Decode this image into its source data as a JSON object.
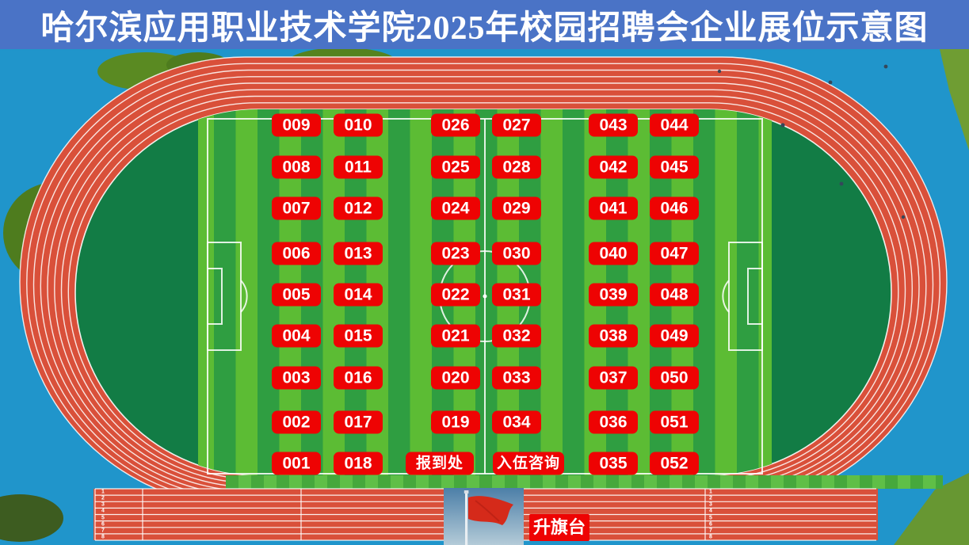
{
  "title": "哈尔滨应用职业技术学院2025年校园招聘会企业展位示意图",
  "booth_columns": [
    [
      "009",
      "008",
      "007",
      "006",
      "005",
      "004",
      "003",
      "002",
      "001"
    ],
    [
      "010",
      "011",
      "012",
      "013",
      "014",
      "015",
      "016",
      "017",
      "018"
    ],
    [
      "026",
      "025",
      "024",
      "023",
      "022",
      "021",
      "020",
      "019",
      "报到处"
    ],
    [
      "027",
      "028",
      "029",
      "030",
      "031",
      "032",
      "033",
      "034",
      "入伍咨询"
    ],
    [
      "043",
      "042",
      "041",
      "040",
      "039",
      "038",
      "037",
      "036",
      "035"
    ],
    [
      "044",
      "045",
      "046",
      "047",
      "048",
      "049",
      "050",
      "051",
      "052"
    ]
  ],
  "special_labels": {
    "checkin": "报到处",
    "enlistment": "入伍咨询",
    "flag_platform": "升旗台"
  },
  "lane_numbers": [
    "1",
    "2",
    "3",
    "4",
    "5",
    "6",
    "7",
    "8"
  ],
  "colors": {
    "title_bar_blue": "#4a73c6",
    "title_text": "#ffffff",
    "booth_red": "#ee0303",
    "booth_text": "#ffffff",
    "track_red": "#d9503a",
    "surround_blue": "#2095cb",
    "field_green_dark": "#127c45",
    "field_stripe_light": "#5cbc34",
    "field_stripe_dark": "#2f9e41",
    "flag_red": "#d52a1a"
  }
}
